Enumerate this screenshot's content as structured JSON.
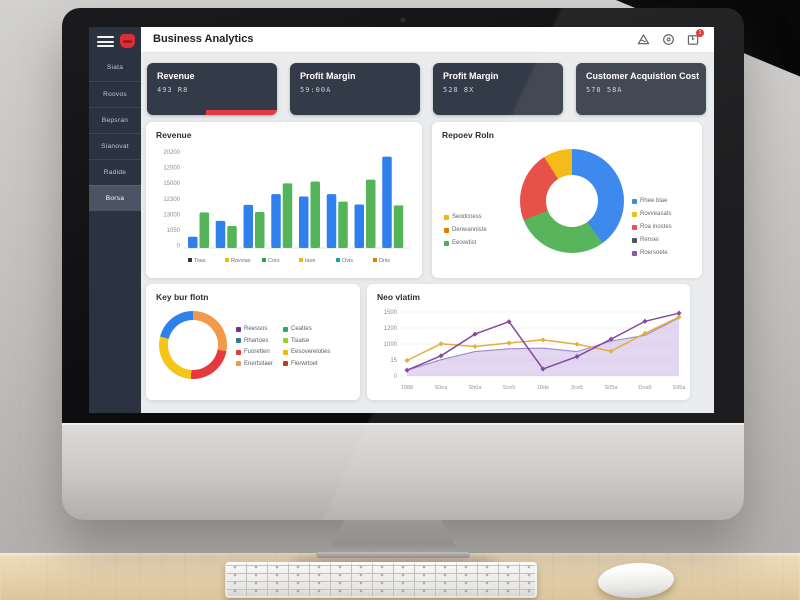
{
  "app": {
    "title": "Business Analytics",
    "header_icons": [
      {
        "name": "alert-triangle-icon"
      },
      {
        "name": "target-icon"
      },
      {
        "name": "notification-icon",
        "badge": "1"
      }
    ]
  },
  "sidebar": {
    "items": [
      {
        "label": "Siata",
        "active": false
      },
      {
        "label": "Roovos",
        "active": false
      },
      {
        "label": "Bepsran",
        "active": false
      },
      {
        "label": "Sianovat",
        "active": false
      },
      {
        "label": "Radide",
        "active": false
      },
      {
        "label": "Borsa",
        "active": true
      }
    ]
  },
  "kpis": [
    {
      "label": "Revenue",
      "value": "493 R8",
      "accent": "#e63946"
    },
    {
      "label": "Profit Margin",
      "value": "59:00A",
      "accent": ""
    },
    {
      "label": "Profit Margin",
      "value": "528 8X",
      "accent": ""
    },
    {
      "label": "Customer Acquistion Cost",
      "value": "578 58A",
      "accent": ""
    }
  ],
  "chart_data": [
    {
      "type": "bar",
      "title": "Revenue",
      "y_ticks": [
        "20200",
        "12000",
        "15000",
        "12300",
        "13000",
        "1050",
        "0"
      ],
      "ylim": [
        0,
        20500
      ],
      "series": [
        {
          "name": "series-blue",
          "color": "#2f80ed",
          "values": [
            2400,
            5800,
            9200,
            11500,
            11000,
            11500,
            9300,
            19500
          ]
        },
        {
          "name": "series-green",
          "color": "#55b45a",
          "values": [
            7600,
            4700,
            7700,
            13800,
            14200,
            9900,
            14600,
            9100
          ]
        }
      ],
      "legend": [
        {
          "label": "Toas",
          "color": "#2b3240"
        },
        {
          "label": "Rovvias",
          "color": "#f2b705"
        },
        {
          "label": "Cors",
          "color": "#2e9e4f"
        },
        {
          "label": "Iave",
          "color": "#f2b705"
        },
        {
          "label": "Ovis",
          "color": "#17a2a8"
        },
        {
          "label": "Dnis",
          "color": "#e07b00"
        }
      ]
    },
    {
      "type": "pie",
      "title": "Repoev Roln",
      "slices": [
        {
          "label": "Rhee blae",
          "color": "#2f80ed",
          "value": 40
        },
        {
          "label": "Eeowdist",
          "color": "#4caf50",
          "value": 29
        },
        {
          "label": "Roa inostes",
          "color": "#e5443c",
          "value": 22
        },
        {
          "label": "Rovveasats",
          "color": "#f2b705",
          "value": 9
        }
      ],
      "legend_left": [
        {
          "label": "Seodcness",
          "color": "#f2b705"
        },
        {
          "label": "Denwanniste",
          "color": "#e07b00"
        },
        {
          "label": "Eeowdist",
          "color": "#4caf50"
        }
      ],
      "legend_right": [
        {
          "label": "Rhee blae",
          "color": "#2f80ed"
        },
        {
          "label": "Rovveasats",
          "color": "#f2b705"
        },
        {
          "label": "Roa inostes",
          "color": "#e5443c"
        },
        {
          "label": "Rensei",
          "color": "#44474c"
        },
        {
          "label": "Roersoete",
          "color": "#8e44ad"
        }
      ]
    },
    {
      "type": "pie",
      "title": "Key bur flotn",
      "style": "thin-ring",
      "slices": [
        {
          "label": "Enertsitaer",
          "color": "#f2994a",
          "value": 28
        },
        {
          "label": "Fuoretten",
          "color": "#e5383f",
          "value": 23
        },
        {
          "label": "Eesovereloties",
          "color": "#f5c518",
          "value": 28
        },
        {
          "label": "Reessos",
          "color": "#2f80ed",
          "value": 21
        }
      ],
      "legend_cols": [
        [
          {
            "label": "Reessos",
            "color": "#7b2d8e"
          },
          {
            "label": "Rhartoes",
            "color": "#2e7d8c"
          },
          {
            "label": "Fuoretten",
            "color": "#e5383f"
          },
          {
            "label": "Enertsitaer",
            "color": "#f2994a"
          }
        ],
        [
          {
            "label": "Ceattes",
            "color": "#27ae60"
          },
          {
            "label": "Tsialse",
            "color": "#9acd32"
          },
          {
            "label": "Eesovereloties",
            "color": "#f2b705"
          },
          {
            "label": "Fierwrtoet",
            "color": "#c0392b"
          }
        ]
      ]
    },
    {
      "type": "line",
      "title": "Neo vlatim",
      "x": [
        "1988",
        "S0ea",
        "Sh0a",
        "Sce5",
        "18de",
        "3ce5",
        "S05a",
        "Dna5",
        "S95a"
      ],
      "y_ticks": [
        "1500",
        "1200",
        "1000",
        "15",
        "0"
      ],
      "ylim": [
        0,
        1650
      ],
      "series": [
        {
          "name": "area-purple",
          "kind": "area",
          "color": "#9b7fc4",
          "fill": "rgba(186,158,219,0.45)",
          "values": [
            150,
            420,
            630,
            700,
            720,
            630,
            900,
            1050,
            1500
          ]
        },
        {
          "name": "line-yellow",
          "kind": "line",
          "color": "#e0a82e",
          "markers": true,
          "values": [
            400,
            830,
            760,
            850,
            930,
            820,
            640,
            1100,
            1520
          ]
        },
        {
          "name": "line-purple",
          "kind": "line",
          "color": "#7d3c98",
          "markers": true,
          "values": [
            150,
            520,
            1080,
            1400,
            180,
            500,
            950,
            1410,
            1620
          ]
        }
      ]
    }
  ]
}
